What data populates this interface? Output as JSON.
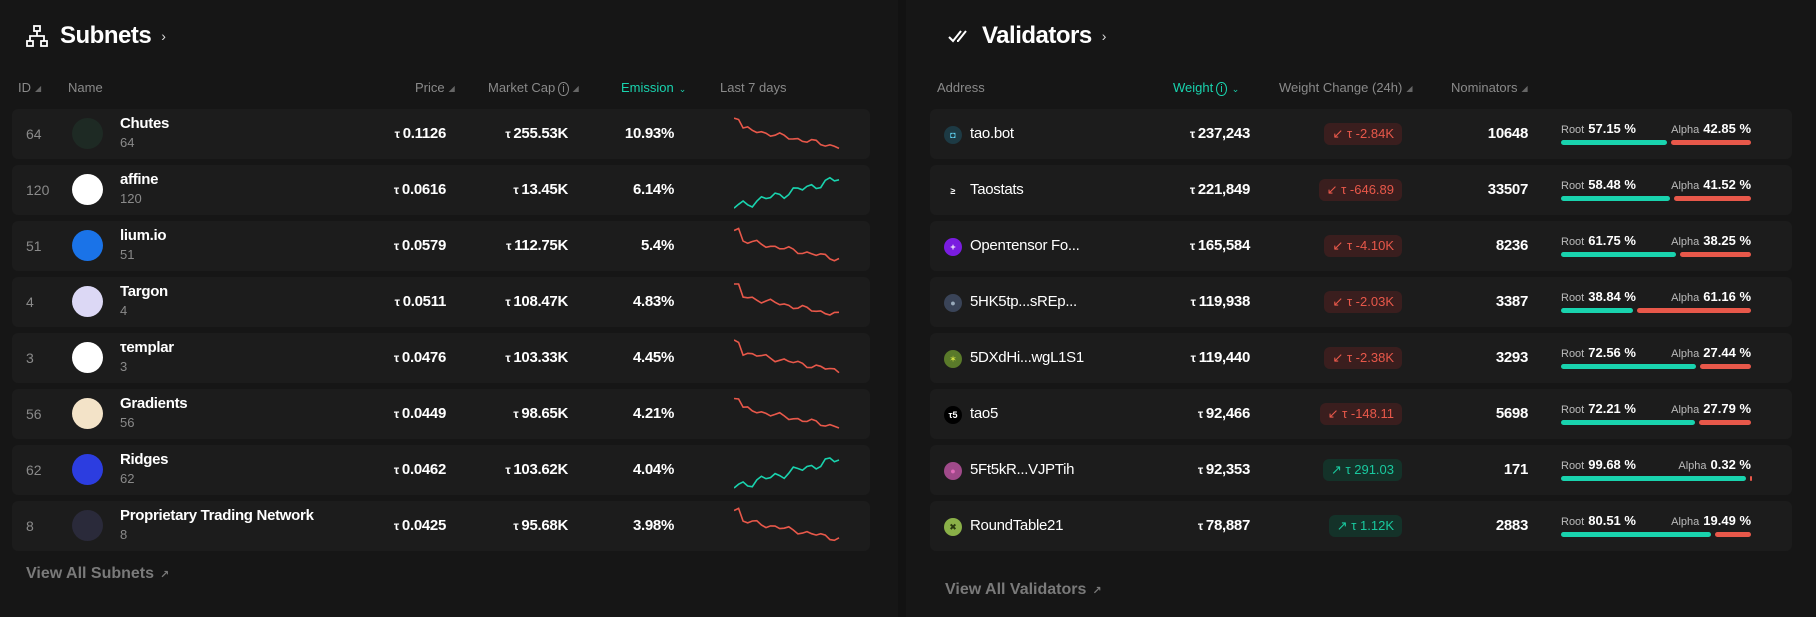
{
  "subnets": {
    "title": "Subnets",
    "chevron": "›",
    "headers": {
      "id": "ID",
      "name": "Name",
      "price": "Price",
      "market_cap": "Market Cap",
      "emission": "Emission",
      "last7": "Last 7 days"
    },
    "tau": "τ",
    "rows": [
      {
        "id": "64",
        "name": "Chutes",
        "sub": "64",
        "price": "0.1126",
        "mcap": "255.53K",
        "emission": "10.93%",
        "trend": "down",
        "logo_bg": "#1e2a24",
        "logo_fg": "#ffffff",
        "logo_icon": "chutes-logo"
      },
      {
        "id": "120",
        "name": "affine",
        "sub": "120",
        "price": "0.0616",
        "mcap": "13.45K",
        "emission": "6.14%",
        "trend": "up",
        "logo_bg": "#ffffff",
        "logo_fg": "#111111",
        "logo_icon": "affine-logo"
      },
      {
        "id": "51",
        "name": "lium.io",
        "sub": "51",
        "price": "0.0579",
        "mcap": "112.75K",
        "emission": "5.4%",
        "trend": "down",
        "logo_bg": "#1a73e8",
        "logo_fg": "#000000",
        "logo_icon": "lium-logo"
      },
      {
        "id": "4",
        "name": "Targon",
        "sub": "4",
        "price": "0.0511",
        "mcap": "108.47K",
        "emission": "4.83%",
        "trend": "down",
        "logo_bg": "#dcd8f5",
        "logo_fg": "#222222",
        "logo_icon": "targon-logo"
      },
      {
        "id": "3",
        "name": "τemplar",
        "sub": "3",
        "price": "0.0476",
        "mcap": "103.33K",
        "emission": "4.45%",
        "trend": "down",
        "logo_bg": "#ffffff",
        "logo_fg": "#e0262f",
        "logo_icon": "templar-logo"
      },
      {
        "id": "56",
        "name": "Gradients",
        "sub": "56",
        "price": "0.0449",
        "mcap": "98.65K",
        "emission": "4.21%",
        "trend": "down",
        "logo_bg": "#f3e3c8",
        "logo_fg": "#111111",
        "logo_icon": "gradients-logo"
      },
      {
        "id": "62",
        "name": "Ridges",
        "sub": "62",
        "price": "0.0462",
        "mcap": "103.62K",
        "emission": "4.04%",
        "trend": "up",
        "logo_bg": "#2c3de0",
        "logo_fg": "#ffffff",
        "logo_icon": "ridges-logo"
      },
      {
        "id": "8",
        "name": "Proprietary Trading Network",
        "sub": "8",
        "price": "0.0425",
        "mcap": "95.68K",
        "emission": "3.98%",
        "trend": "down",
        "logo_bg": "#2a2a3a",
        "logo_fg": "#f0a030",
        "logo_icon": "ptn-logo"
      }
    ],
    "view_all": "View All Subnets",
    "arrow": "↗"
  },
  "validators": {
    "title": "Validators",
    "chevron": "›",
    "headers": {
      "address": "Address",
      "weight": "Weight",
      "weight_change": "Weight Change (24h)",
      "nominators": "Nominators"
    },
    "root_label": "Root",
    "alpha_label": "Alpha",
    "rows": [
      {
        "name": "tao.bot",
        "weight": "237,243",
        "change": "τ -2.84K",
        "dir": "neg",
        "nominators": "10648",
        "root": "57.15 %",
        "alpha": "42.85 %",
        "root_frac": 0.5715,
        "icon_bg": "#1d3a44",
        "icon_fg": "#5fd1f0",
        "icon_txt": "◘"
      },
      {
        "name": "Taostats",
        "weight": "221,849",
        "change": "τ -646.89",
        "dir": "neg",
        "nominators": "33507",
        "root": "58.48 %",
        "alpha": "41.52 %",
        "root_frac": 0.5848,
        "icon_bg": "#1c1c1c",
        "icon_fg": "#ffffff",
        "icon_txt": "≥"
      },
      {
        "name": "Openτensor Fo...",
        "weight": "165,584",
        "change": "τ -4.10K",
        "dir": "neg",
        "nominators": "8236",
        "root": "61.75 %",
        "alpha": "38.25 %",
        "root_frac": 0.6175,
        "icon_bg": "#7a1ce0",
        "icon_fg": "#ffffff",
        "icon_txt": "+"
      },
      {
        "name": "5HK5tp...sREp...",
        "weight": "119,938",
        "change": "τ -2.03K",
        "dir": "neg",
        "nominators": "3387",
        "root": "38.84 %",
        "alpha": "61.16 %",
        "root_frac": 0.3884,
        "icon_bg": "#3a4458",
        "icon_fg": "#9ab",
        "icon_txt": "●"
      },
      {
        "name": "5DXdHi...wgL1S1",
        "weight": "119,440",
        "change": "τ -2.38K",
        "dir": "neg",
        "nominators": "3293",
        "root": "72.56 %",
        "alpha": "27.44 %",
        "root_frac": 0.7256,
        "icon_bg": "#5a7a2a",
        "icon_fg": "#d0e040",
        "icon_txt": "✶"
      },
      {
        "name": "tao5",
        "weight": "92,466",
        "change": "τ -148.11",
        "dir": "neg",
        "nominators": "5698",
        "root": "72.21 %",
        "alpha": "27.79 %",
        "root_frac": 0.7221,
        "icon_bg": "#000000",
        "icon_fg": "#ffffff",
        "icon_txt": "τ5"
      },
      {
        "name": "5Ft5kR...VJPTih",
        "weight": "92,353",
        "change": "τ 291.03",
        "dir": "pos",
        "nominators": "171",
        "root": "99.68 %",
        "alpha": "0.32 %",
        "root_frac": 0.9968,
        "icon_bg": "#a04a8a",
        "icon_fg": "#e06ab8",
        "icon_txt": "●"
      },
      {
        "name": "RoundTable21",
        "weight": "78,887",
        "change": "τ 1.12K",
        "dir": "pos",
        "nominators": "2883",
        "root": "80.51 %",
        "alpha": "19.49 %",
        "root_frac": 0.8051,
        "icon_bg": "#8ab048",
        "icon_fg": "#2a3a10",
        "icon_txt": "✖"
      }
    ],
    "view_all": "View All Validators",
    "arrow": "↗"
  },
  "colors": {
    "accent": "#19d3ae",
    "negative": "#e8584a",
    "root_bar": "#19d3ae",
    "alpha_bar": "#e8584a"
  }
}
